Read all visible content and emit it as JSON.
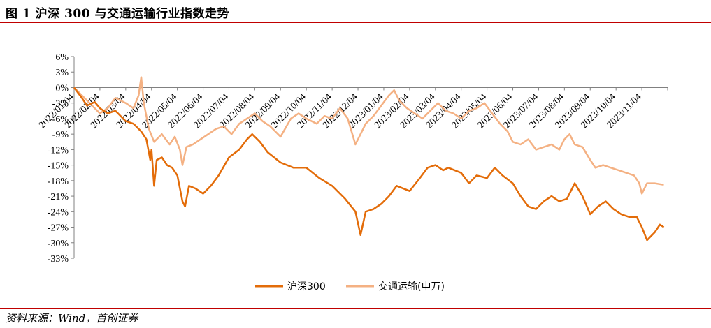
{
  "header": {
    "title": "图 1 沪深 300 与交通运输行业指数走势"
  },
  "footer": {
    "source": "资料来源：Wind，首创证券"
  },
  "colors": {
    "rule": "#c00000",
    "hs300": "#e36c09",
    "transport": "#f4b183",
    "axis": "#808080"
  },
  "chart_data": {
    "type": "line",
    "title": "",
    "xlabel": "",
    "ylabel": "",
    "x_ticks": [
      "2022/01/04",
      "2022/02/04",
      "2022/03/04",
      "2022/04/04",
      "2022/05/04",
      "2022/06/04",
      "2022/07/04",
      "2022/08/04",
      "2022/09/04",
      "2022/10/04",
      "2022/11/04",
      "2022/12/04",
      "2023/01/04",
      "2023/02/04",
      "2023/03/04",
      "2023/04/04",
      "2023/05/04",
      "2023/06/04",
      "2023/07/04",
      "2023/08/04",
      "2023/09/04",
      "2023/10/04",
      "2023/11/04"
    ],
    "y_ticks": [
      "6%",
      "3%",
      "0%",
      "-3%",
      "-6%",
      "-9%",
      "-12%",
      "-15%",
      "-18%",
      "-21%",
      "-24%",
      "-27%",
      "-30%",
      "-33%"
    ],
    "ylim": [
      -33,
      6
    ],
    "legend_position": "bottom",
    "grid": false,
    "series": [
      {
        "name": "沪深300",
        "values": [
          [
            0,
            0
          ],
          [
            0.3,
            -2
          ],
          [
            0.5,
            -3.5
          ],
          [
            0.8,
            -2.8
          ],
          [
            1.0,
            -4
          ],
          [
            1.3,
            -5
          ],
          [
            1.6,
            -4.5
          ],
          [
            2.0,
            -6.5
          ],
          [
            2.3,
            -7
          ],
          [
            2.6,
            -8.5
          ],
          [
            2.8,
            -10
          ],
          [
            2.95,
            -14
          ],
          [
            3.0,
            -12
          ],
          [
            3.1,
            -19
          ],
          [
            3.2,
            -14
          ],
          [
            3.4,
            -13.5
          ],
          [
            3.6,
            -15
          ],
          [
            3.8,
            -15.5
          ],
          [
            4.0,
            -17
          ],
          [
            4.2,
            -22
          ],
          [
            4.3,
            -23
          ],
          [
            4.45,
            -19
          ],
          [
            4.7,
            -19.5
          ],
          [
            5.0,
            -20.5
          ],
          [
            5.3,
            -19
          ],
          [
            5.6,
            -17
          ],
          [
            6.0,
            -13.5
          ],
          [
            6.4,
            -12
          ],
          [
            6.7,
            -10
          ],
          [
            6.9,
            -9
          ],
          [
            7.2,
            -10.5
          ],
          [
            7.5,
            -12.5
          ],
          [
            8.0,
            -14.5
          ],
          [
            8.5,
            -15.5
          ],
          [
            9.0,
            -15.5
          ],
          [
            9.5,
            -17.5
          ],
          [
            10.0,
            -19
          ],
          [
            10.5,
            -21.5
          ],
          [
            10.9,
            -24
          ],
          [
            11.1,
            -28.5
          ],
          [
            11.3,
            -24
          ],
          [
            11.6,
            -23.5
          ],
          [
            11.9,
            -22.5
          ],
          [
            12.2,
            -21
          ],
          [
            12.5,
            -19
          ],
          [
            13.0,
            -20
          ],
          [
            13.4,
            -17.5
          ],
          [
            13.7,
            -15.5
          ],
          [
            14.0,
            -15
          ],
          [
            14.3,
            -16
          ],
          [
            14.5,
            -15.5
          ],
          [
            15.0,
            -16.5
          ],
          [
            15.3,
            -18.5
          ],
          [
            15.6,
            -17
          ],
          [
            16.0,
            -17.5
          ],
          [
            16.3,
            -15.5
          ],
          [
            16.6,
            -17
          ],
          [
            17.0,
            -18.5
          ],
          [
            17.3,
            -21
          ],
          [
            17.6,
            -23
          ],
          [
            17.9,
            -23.5
          ],
          [
            18.2,
            -22
          ],
          [
            18.5,
            -21
          ],
          [
            18.8,
            -22
          ],
          [
            19.1,
            -21.5
          ],
          [
            19.4,
            -18.5
          ],
          [
            19.7,
            -21
          ],
          [
            20.0,
            -24.5
          ],
          [
            20.3,
            -23
          ],
          [
            20.6,
            -22
          ],
          [
            20.9,
            -23.5
          ],
          [
            21.2,
            -24.5
          ],
          [
            21.5,
            -25
          ],
          [
            21.8,
            -25
          ],
          [
            22.0,
            -27
          ],
          [
            22.2,
            -29.5
          ],
          [
            22.5,
            -28
          ],
          [
            22.7,
            -26.5
          ],
          [
            22.85,
            -27
          ]
        ]
      },
      {
        "name": "交通运输(申万)",
        "values": [
          [
            0,
            0
          ],
          [
            0.3,
            -1.5
          ],
          [
            0.6,
            -3
          ],
          [
            1.0,
            -5
          ],
          [
            1.3,
            -4
          ],
          [
            1.6,
            -2
          ],
          [
            2.0,
            -3
          ],
          [
            2.3,
            -4
          ],
          [
            2.5,
            -1.5
          ],
          [
            2.6,
            2
          ],
          [
            2.7,
            -3
          ],
          [
            2.9,
            -8
          ],
          [
            3.1,
            -10.5
          ],
          [
            3.4,
            -9
          ],
          [
            3.7,
            -11
          ],
          [
            3.9,
            -9.5
          ],
          [
            4.1,
            -12
          ],
          [
            4.2,
            -15
          ],
          [
            4.35,
            -11.5
          ],
          [
            4.6,
            -11
          ],
          [
            4.9,
            -10
          ],
          [
            5.2,
            -9
          ],
          [
            5.5,
            -8
          ],
          [
            5.8,
            -7.5
          ],
          [
            6.1,
            -9
          ],
          [
            6.4,
            -7
          ],
          [
            6.7,
            -6
          ],
          [
            7.0,
            -5
          ],
          [
            7.3,
            -6.5
          ],
          [
            7.6,
            -7.5
          ],
          [
            8.0,
            -9.5
          ],
          [
            8.4,
            -6
          ],
          [
            8.7,
            -5
          ],
          [
            9.0,
            -6
          ],
          [
            9.4,
            -7
          ],
          [
            9.7,
            -5.5
          ],
          [
            10.0,
            -6
          ],
          [
            10.3,
            -4
          ],
          [
            10.6,
            -6
          ],
          [
            10.9,
            -11
          ],
          [
            11.1,
            -9
          ],
          [
            11.3,
            -7
          ],
          [
            11.6,
            -5.5
          ],
          [
            11.9,
            -3.5
          ],
          [
            12.2,
            -1.5
          ],
          [
            12.4,
            -0.5
          ],
          [
            12.6,
            -2.5
          ],
          [
            12.9,
            -4
          ],
          [
            13.2,
            -5
          ],
          [
            13.5,
            -6
          ],
          [
            13.8,
            -4.5
          ],
          [
            14.1,
            -3
          ],
          [
            14.4,
            -4.5
          ],
          [
            14.7,
            -5
          ],
          [
            15.0,
            -6
          ],
          [
            15.3,
            -4.5
          ],
          [
            15.6,
            -4
          ],
          [
            15.9,
            -3
          ],
          [
            16.2,
            -5
          ],
          [
            16.5,
            -7
          ],
          [
            16.8,
            -8.5
          ],
          [
            17.0,
            -10.5
          ],
          [
            17.3,
            -11
          ],
          [
            17.6,
            -10
          ],
          [
            17.9,
            -12
          ],
          [
            18.2,
            -11.5
          ],
          [
            18.5,
            -11
          ],
          [
            18.8,
            -12
          ],
          [
            19.0,
            -10
          ],
          [
            19.2,
            -9
          ],
          [
            19.4,
            -11
          ],
          [
            19.7,
            -11.5
          ],
          [
            20.0,
            -14
          ],
          [
            20.2,
            -15.5
          ],
          [
            20.5,
            -15
          ],
          [
            20.8,
            -15.5
          ],
          [
            21.1,
            -16
          ],
          [
            21.4,
            -16.5
          ],
          [
            21.7,
            -17
          ],
          [
            21.9,
            -18.5
          ],
          [
            22.0,
            -20.5
          ],
          [
            22.2,
            -18.5
          ],
          [
            22.5,
            -18.5
          ],
          [
            22.85,
            -18.8
          ]
        ]
      }
    ]
  }
}
